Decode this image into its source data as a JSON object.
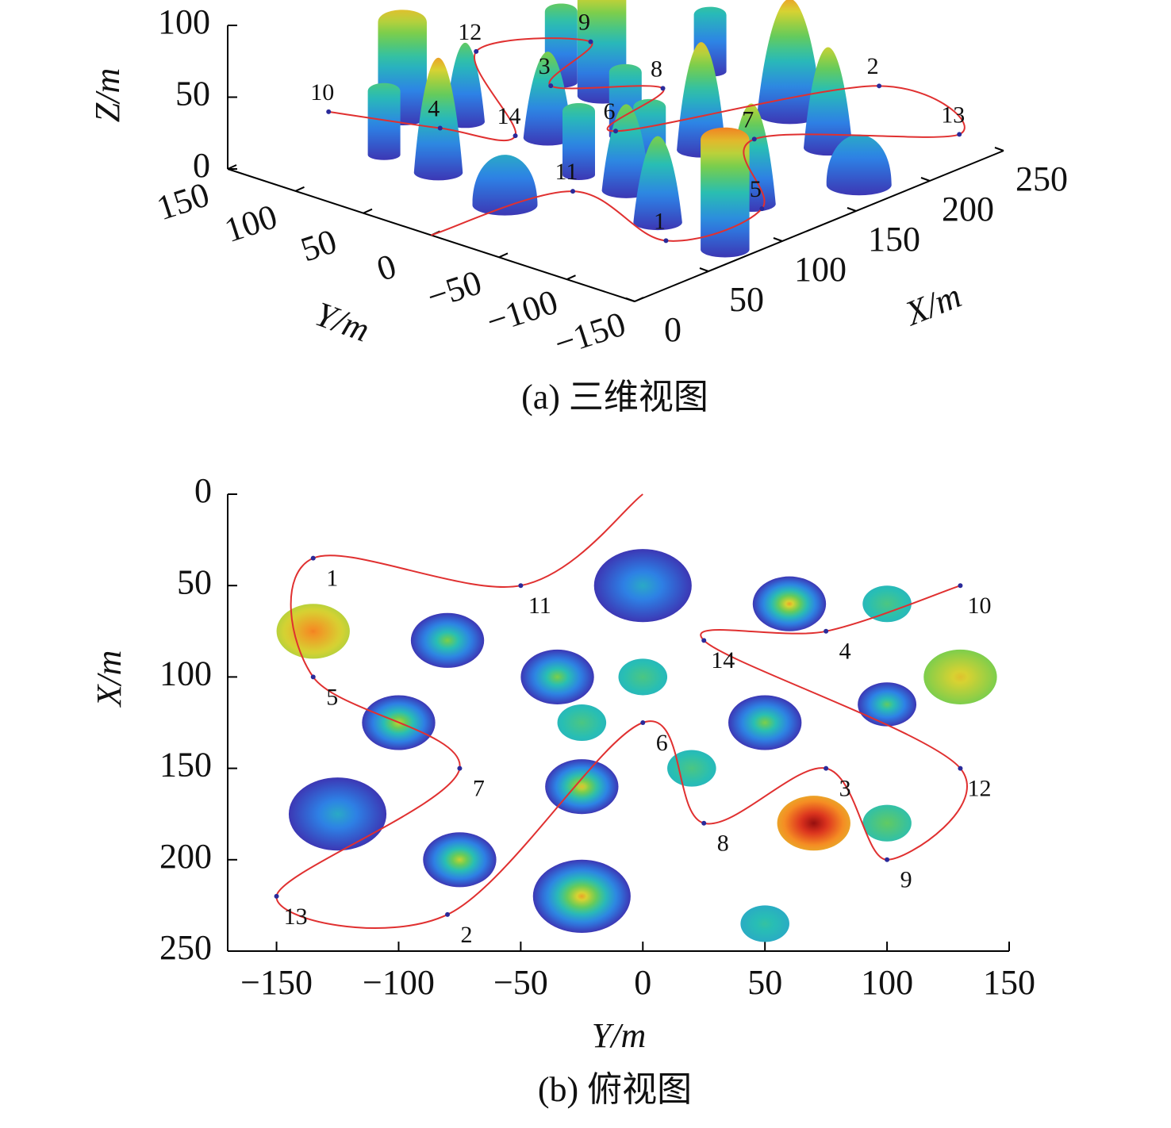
{
  "chart_data": [
    {
      "type": "3d",
      "caption": "(a) 三维视图",
      "xlabel": "X/m",
      "ylabel": "Y/m",
      "zlabel": "Z/m",
      "xlim": [
        0,
        250
      ],
      "ylim": [
        -150,
        150
      ],
      "zlim": [
        0,
        100
      ],
      "xticks": [
        0,
        50,
        100,
        150,
        200,
        250
      ],
      "yticks": [
        150,
        100,
        50,
        0,
        {
          "value": -50,
          "label": "−50"
        },
        {
          "value": -100,
          "label": "−100"
        },
        {
          "value": -150,
          "label": "−150"
        }
      ],
      "zticks": [
        0,
        50,
        100
      ],
      "path_color": "#e03030",
      "point_color": "#2a2a9a",
      "point_labels": [
        null,
        "11",
        "1",
        "5",
        "7",
        "13",
        "2",
        "6",
        "8",
        "3",
        "9",
        "12",
        "14",
        "4",
        "10"
      ],
      "path_y": [
        0,
        -50,
        -135,
        -135,
        -75,
        -150,
        -80,
        0,
        25,
        75,
        100,
        130,
        25,
        75,
        130
      ],
      "path_x": [
        0,
        50,
        35,
        100,
        150,
        220,
        230,
        125,
        180,
        150,
        200,
        150,
        80,
        75,
        50
      ],
      "path_z": [
        0,
        25,
        23,
        18,
        27,
        24,
        32,
        20,
        19,
        18,
        20,
        25,
        28,
        20,
        25
      ],
      "obstacle_y": [
        0,
        60,
        100,
        -135,
        -80,
        -35,
        0,
        130,
        100,
        -100,
        -25,
        50,
        20,
        -25,
        -125,
        70,
        100,
        -75,
        -25,
        50
      ],
      "obstacle_x": [
        50,
        60,
        60,
        75,
        80,
        100,
        100,
        100,
        115,
        125,
        125,
        125,
        150,
        160,
        175,
        180,
        180,
        200,
        220,
        235
      ],
      "obstacle_radius": [
        20,
        15,
        10,
        15,
        15,
        15,
        10,
        15,
        12,
        15,
        10,
        15,
        10,
        15,
        20,
        15,
        10,
        15,
        20,
        10
      ],
      "obstacle_height": [
        35,
        80,
        50,
        85,
        60,
        60,
        50,
        75,
        55,
        70,
        50,
        60,
        50,
        75,
        35,
        100,
        55,
        70,
        80,
        45
      ],
      "obstacle_shape": [
        "dome",
        "cone",
        "cylinder",
        "cylinder",
        "cone",
        "cone",
        "cylinder",
        "cylinder",
        "cone",
        "cone",
        "cylinder",
        "cone",
        "cylinder",
        "cone",
        "dome",
        "cylinder",
        "cylinder",
        "cone",
        "cone",
        "cylinder"
      ]
    },
    {
      "type": "line",
      "caption": "(b) 俯视图",
      "xlabel": "Y/m",
      "ylabel": "X/m",
      "xlim": [
        -170,
        150
      ],
      "ylim": [
        0,
        250
      ],
      "y_inverted": true,
      "xticks": [
        {
          "value": -150,
          "label": "−150"
        },
        {
          "value": -100,
          "label": "−100"
        },
        {
          "value": -50,
          "label": "−50"
        },
        0,
        50,
        100,
        150
      ],
      "yticks": [
        0,
        50,
        100,
        150,
        200,
        250
      ],
      "path_color": "#e03030",
      "point_color": "#2a2a9a",
      "point_labels": [
        null,
        "11",
        "1",
        "5",
        "7",
        "13",
        "2",
        "6",
        "8",
        "3",
        "9",
        "12",
        "14",
        "4",
        "10"
      ],
      "path_y": [
        0,
        -50,
        -135,
        -135,
        -75,
        -150,
        -80,
        0,
        25,
        75,
        100,
        130,
        25,
        75,
        130
      ],
      "path_x": [
        0,
        50,
        35,
        100,
        150,
        220,
        230,
        125,
        180,
        150,
        200,
        150,
        80,
        75,
        50
      ],
      "obstacle_y": [
        0,
        60,
        100,
        -135,
        -80,
        -35,
        0,
        130,
        100,
        -100,
        -25,
        50,
        20,
        -25,
        -125,
        70,
        100,
        -75,
        -25,
        50
      ],
      "obstacle_x": [
        50,
        60,
        60,
        75,
        80,
        100,
        100,
        100,
        115,
        125,
        125,
        125,
        150,
        160,
        175,
        180,
        180,
        200,
        220,
        235
      ],
      "obstacle_radius": [
        20,
        15,
        10,
        15,
        15,
        15,
        10,
        15,
        12,
        15,
        10,
        15,
        10,
        15,
        20,
        15,
        10,
        15,
        20,
        10
      ],
      "obstacle_height": [
        35,
        80,
        50,
        85,
        60,
        60,
        50,
        75,
        55,
        70,
        50,
        60,
        50,
        75,
        35,
        100,
        55,
        70,
        80,
        45
      ],
      "obstacle_shape": [
        "dome",
        "cone",
        "cylinder",
        "cylinder",
        "cone",
        "cone",
        "cylinder",
        "cylinder",
        "cone",
        "cone",
        "cylinder",
        "cone",
        "cylinder",
        "cone",
        "dome",
        "cylinder",
        "cylinder",
        "cone",
        "cone",
        "cylinder"
      ]
    }
  ]
}
